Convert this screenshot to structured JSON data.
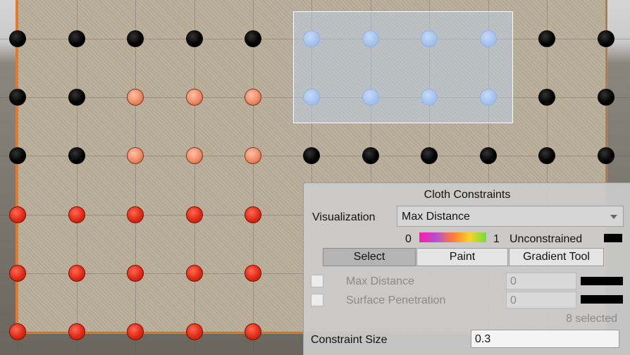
{
  "colors": {
    "black_particle": "#000000",
    "max_distance_particle": "#e02a14",
    "mid_particle": "#f08a66",
    "selected_particle": "#8fb5f2",
    "cloth_border": "#e07a2e",
    "panel_bg": "#cbcbcb"
  },
  "panel": {
    "title": "Cloth Constraints",
    "visualization_label": "Visualization",
    "visualization_value": "Max Distance",
    "scale_min": "0",
    "scale_max": "1",
    "unconstrained_label": "Unconstrained",
    "tools": [
      "Select",
      "Paint",
      "Gradient Tool"
    ],
    "active_tool": "Select",
    "max_distance_label": "Max Distance",
    "max_distance_value": "0",
    "max_distance_checked": false,
    "surface_penetration_label": "Surface Penetration",
    "surface_penetration_value": "0",
    "surface_penetration_checked": false,
    "selected_count_text": "8 selected",
    "constraint_size_label": "Constraint Size",
    "constraint_size_value": "0.3"
  },
  "particles": [
    [
      "black",
      "black",
      "black",
      "black",
      "black",
      "blue",
      "blue",
      "blue",
      "blue",
      "black",
      "black"
    ],
    [
      "black",
      "black",
      "salmon",
      "salmon",
      "salmon",
      "blue",
      "blue",
      "blue",
      "blue",
      "black",
      "black"
    ],
    [
      "black",
      "black",
      "salmon",
      "salmon",
      "salmon",
      "black",
      "black",
      "black",
      "black",
      "black",
      "black"
    ],
    [
      "red",
      "red",
      "red",
      "red",
      "red",
      "",
      "",
      "",
      "",
      "",
      ""
    ],
    [
      "red",
      "red",
      "red",
      "red",
      "red",
      "",
      "",
      "",
      "",
      "",
      ""
    ],
    [
      "red",
      "red",
      "red",
      "red",
      "red",
      "",
      "",
      "",
      "",
      "",
      ""
    ]
  ]
}
